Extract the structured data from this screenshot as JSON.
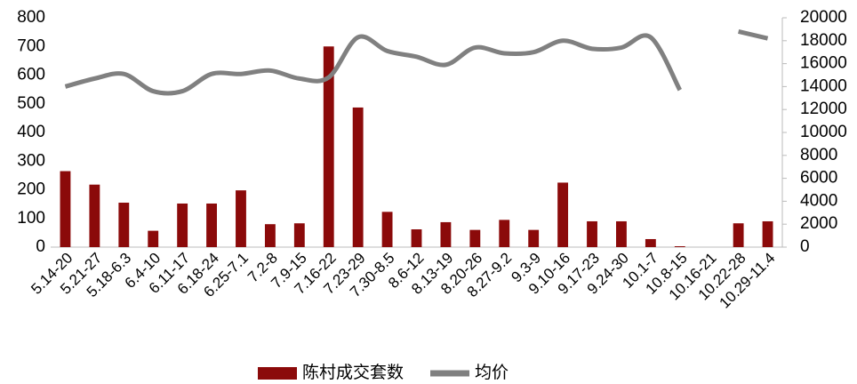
{
  "chart_data": {
    "type": "bar_line",
    "categories": [
      "5.14-20",
      "5.21-27",
      "5.18-6.3",
      "6.4-10",
      "6.11-17",
      "6.18-24",
      "6.25-7.1",
      "7.2-8",
      "7.9-15",
      "7.16-22",
      "7.23-29",
      "7.30-8.5",
      "8.6-12",
      "8.13-19",
      "8.20-26",
      "8.27-9.2",
      "9.3-9",
      "9.10-16",
      "9.17-23",
      "9.24-30",
      "10.1-7",
      "10.8-15",
      "10.16-21",
      "10.22-28",
      "10.29-11.4"
    ],
    "series": [
      {
        "name": "陈村成交套数",
        "color": "#8b0a0a",
        "type": "bar",
        "values": [
          265,
          218,
          155,
          57,
          152,
          152,
          198,
          80,
          83,
          700,
          487,
          123,
          62,
          87,
          60,
          95,
          60,
          225,
          90,
          90,
          28,
          3,
          0,
          83,
          90
        ]
      },
      {
        "name": "均价",
        "color": "#808080",
        "type": "line",
        "axis": "y2",
        "values": [
          14000,
          14700,
          15100,
          13600,
          13600,
          15100,
          15100,
          15400,
          14700,
          14800,
          18300,
          17100,
          16600,
          15900,
          17400,
          16900,
          17000,
          18000,
          17300,
          17400,
          18300,
          13700,
          null,
          18800,
          18200
        ]
      }
    ],
    "ylim": [
      0,
      800
    ],
    "yticks": [
      0,
      100,
      200,
      300,
      400,
      500,
      600,
      700,
      800
    ],
    "y2lim": [
      0,
      20000
    ],
    "y2ticks": [
      0,
      2000,
      4000,
      6000,
      8000,
      10000,
      12000,
      14000,
      16000,
      18000,
      20000
    ],
    "legend": "bottom"
  }
}
